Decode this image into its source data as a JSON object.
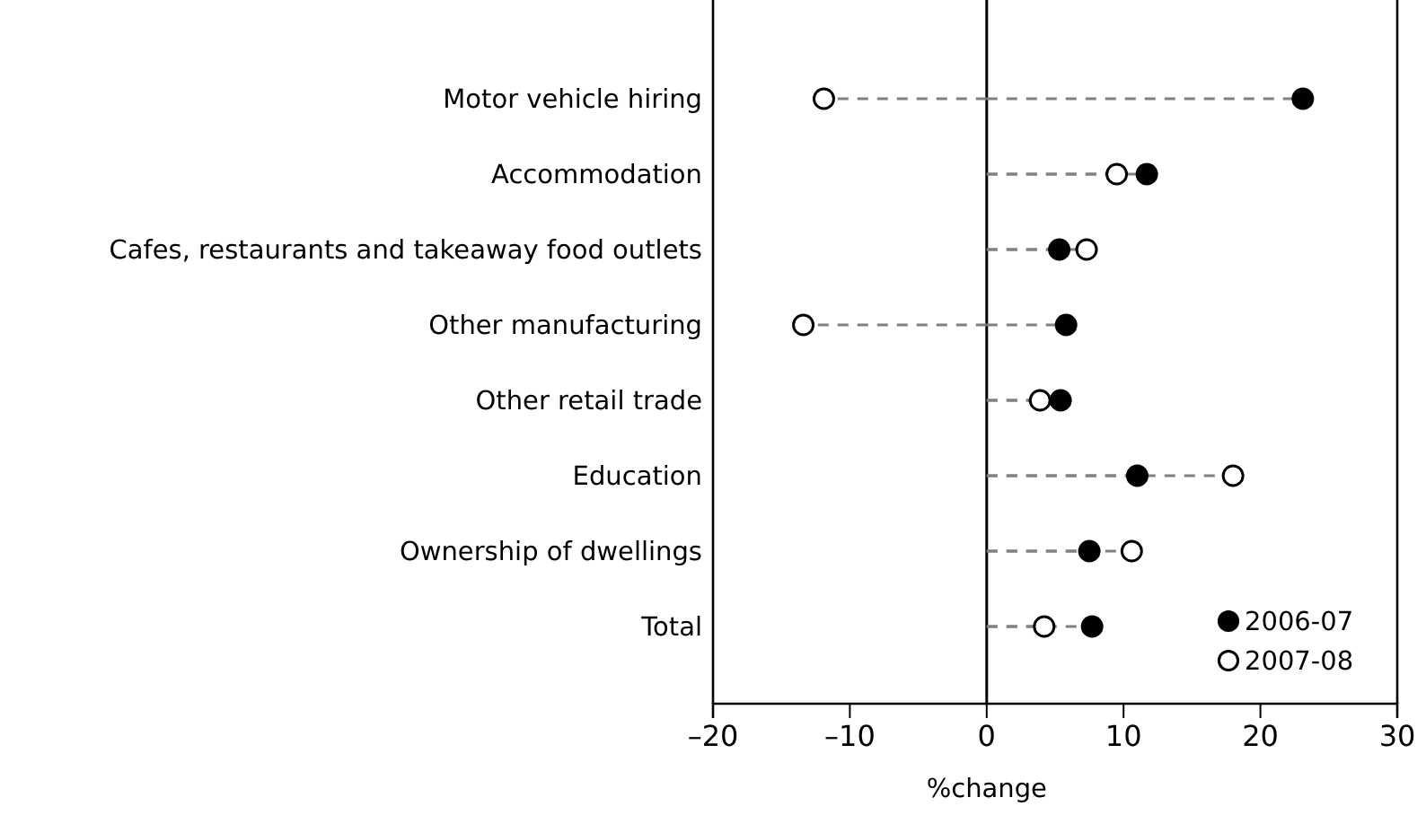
{
  "chart_data": {
    "type": "lollipop",
    "orientation": "horizontal",
    "categories": [
      "Motor vehicle hiring",
      "Accommodation",
      "Cafes, restaurants and takeaway food outlets",
      "Other manufacturing",
      "Other retail trade",
      "Education",
      "Ownership of dwellings",
      "Total"
    ],
    "series": [
      {
        "name": "2006-07",
        "color": "#000000",
        "values": [
          23.1,
          11.7,
          5.3,
          5.8,
          5.4,
          11.0,
          7.5,
          7.7
        ]
      },
      {
        "name": "2007-08",
        "color": "#ffffff",
        "values": [
          -11.9,
          9.5,
          7.3,
          -13.4,
          3.9,
          18.0,
          10.6,
          4.2
        ]
      }
    ],
    "xlabel": "%change",
    "xlim": [
      -20,
      30
    ],
    "xticks": [
      {
        "value": -20,
        "label": "–20"
      },
      {
        "value": -10,
        "label": "–10"
      },
      0,
      10,
      20,
      30
    ],
    "ref_lines": [
      {
        "axis": "x",
        "value": 0,
        "color": "#000000"
      }
    ],
    "line_style": "dashed",
    "marker": "circle",
    "legend": "bottom right",
    "grid": false
  }
}
